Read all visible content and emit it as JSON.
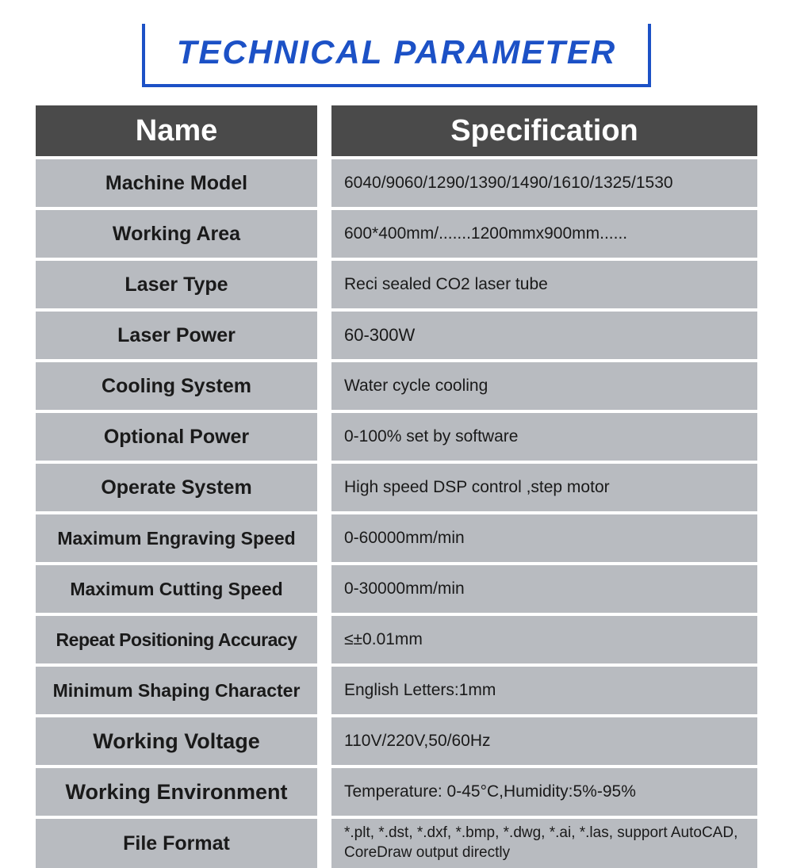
{
  "title": "TECHNICAL PARAMETER",
  "headers": {
    "name": "Name",
    "spec": "Specification"
  },
  "rows": [
    {
      "name": "Machine Model",
      "spec": "6040/9060/1290/1390/1490/1610/1325/1530",
      "nameSize": 25,
      "specSize": 21
    },
    {
      "name": "Working Area",
      "spec": "600*400mm/.......1200mmx900mm......",
      "nameSize": 25,
      "specSize": 21
    },
    {
      "name": "Laser Type",
      "spec": "Reci sealed CO2 laser tube",
      "nameSize": 25,
      "specSize": 21
    },
    {
      "name": "Laser Power",
      "spec": "60-300W",
      "nameSize": 25,
      "specSize": 22
    },
    {
      "name": "Cooling System",
      "spec": "Water cycle cooling",
      "nameSize": 25,
      "specSize": 21
    },
    {
      "name": "Optional Power",
      "spec": "0-100% set by software",
      "nameSize": 25,
      "specSize": 21
    },
    {
      "name": "Operate System",
      "spec": "High speed DSP control ,step motor",
      "nameSize": 25,
      "specSize": 21
    },
    {
      "name": "Maximum Engraving Speed",
      "spec": "0-60000mm/min",
      "nameSize": 23,
      "specSize": 21
    },
    {
      "name": "Maximum Cutting Speed",
      "spec": "0-30000mm/min",
      "nameSize": 23,
      "specSize": 21
    },
    {
      "name": "Repeat Positioning Accuracy",
      "spec": "≤±0.01mm",
      "nameSize": 23,
      "specSize": 21,
      "condensed": true
    },
    {
      "name": "Minimum Shaping Character",
      "spec": "English Letters:1mm",
      "nameSize": 23,
      "specSize": 21
    },
    {
      "name": "Working Voltage",
      "spec": "110V/220V,50/60Hz",
      "nameSize": 27,
      "specSize": 21
    },
    {
      "name": "Working Environment",
      "spec": "Temperature: 0-45°C,Humidity:5%-95%",
      "nameSize": 27,
      "specSize": 21
    },
    {
      "name": "File Format",
      "spec": "*.plt, *.dst, *.dxf, *.bmp, *.dwg, *.ai, *.las, support AutoCAD, CoreDraw output directly",
      "nameSize": 25,
      "specSize": 19,
      "double": true
    }
  ],
  "colors": {
    "title": "#1c51c6",
    "headerBg": "#4a4a4a",
    "headerText": "#ffffff",
    "cellBg": "#b8bbc0",
    "cellText": "#1a1a1a",
    "pageBg": "#ffffff"
  }
}
